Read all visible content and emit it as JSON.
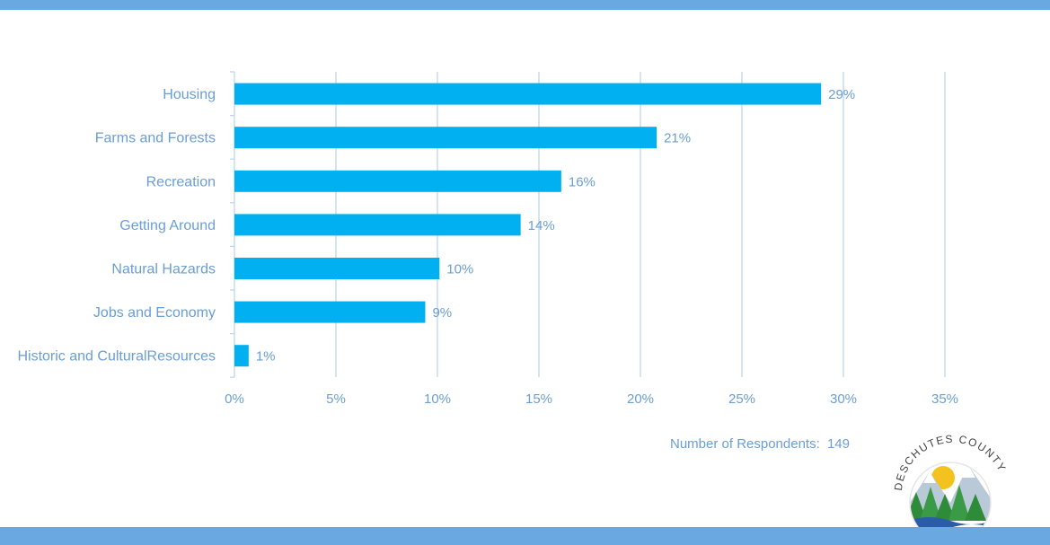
{
  "chart_data": {
    "type": "bar",
    "orientation": "horizontal",
    "categories": [
      "Housing",
      "Farms and Forests",
      "Recreation",
      "Getting Around",
      "Natural Hazards",
      "Jobs and Economy",
      "Historic and CulturalResources"
    ],
    "values": [
      29,
      21,
      16,
      14,
      10,
      9,
      1
    ],
    "bar_values": [
      28.9,
      20.8,
      16.1,
      14.1,
      10.1,
      9.4,
      0.7
    ],
    "value_labels": [
      "29%",
      "21%",
      "16%",
      "14%",
      "10%",
      "9%",
      "1%"
    ],
    "x_ticks": [
      0,
      5,
      10,
      15,
      20,
      25,
      30,
      35
    ],
    "x_tick_labels": [
      "0%",
      "5%",
      "10%",
      "15%",
      "20%",
      "25%",
      "30%",
      "35%"
    ],
    "xlim": [
      0,
      35
    ],
    "grid": true,
    "title": "",
    "xlabel": "",
    "ylabel": ""
  },
  "footer": {
    "respondents_label": "Number of Respondents:",
    "respondents_count": "149"
  },
  "logo": {
    "text": "DESCHUTES COUNTY"
  },
  "colors": {
    "bar": "#00b0f0",
    "text": "#6a9ed6",
    "grid": "#bcd3ea",
    "band": "#6aa8e2"
  }
}
